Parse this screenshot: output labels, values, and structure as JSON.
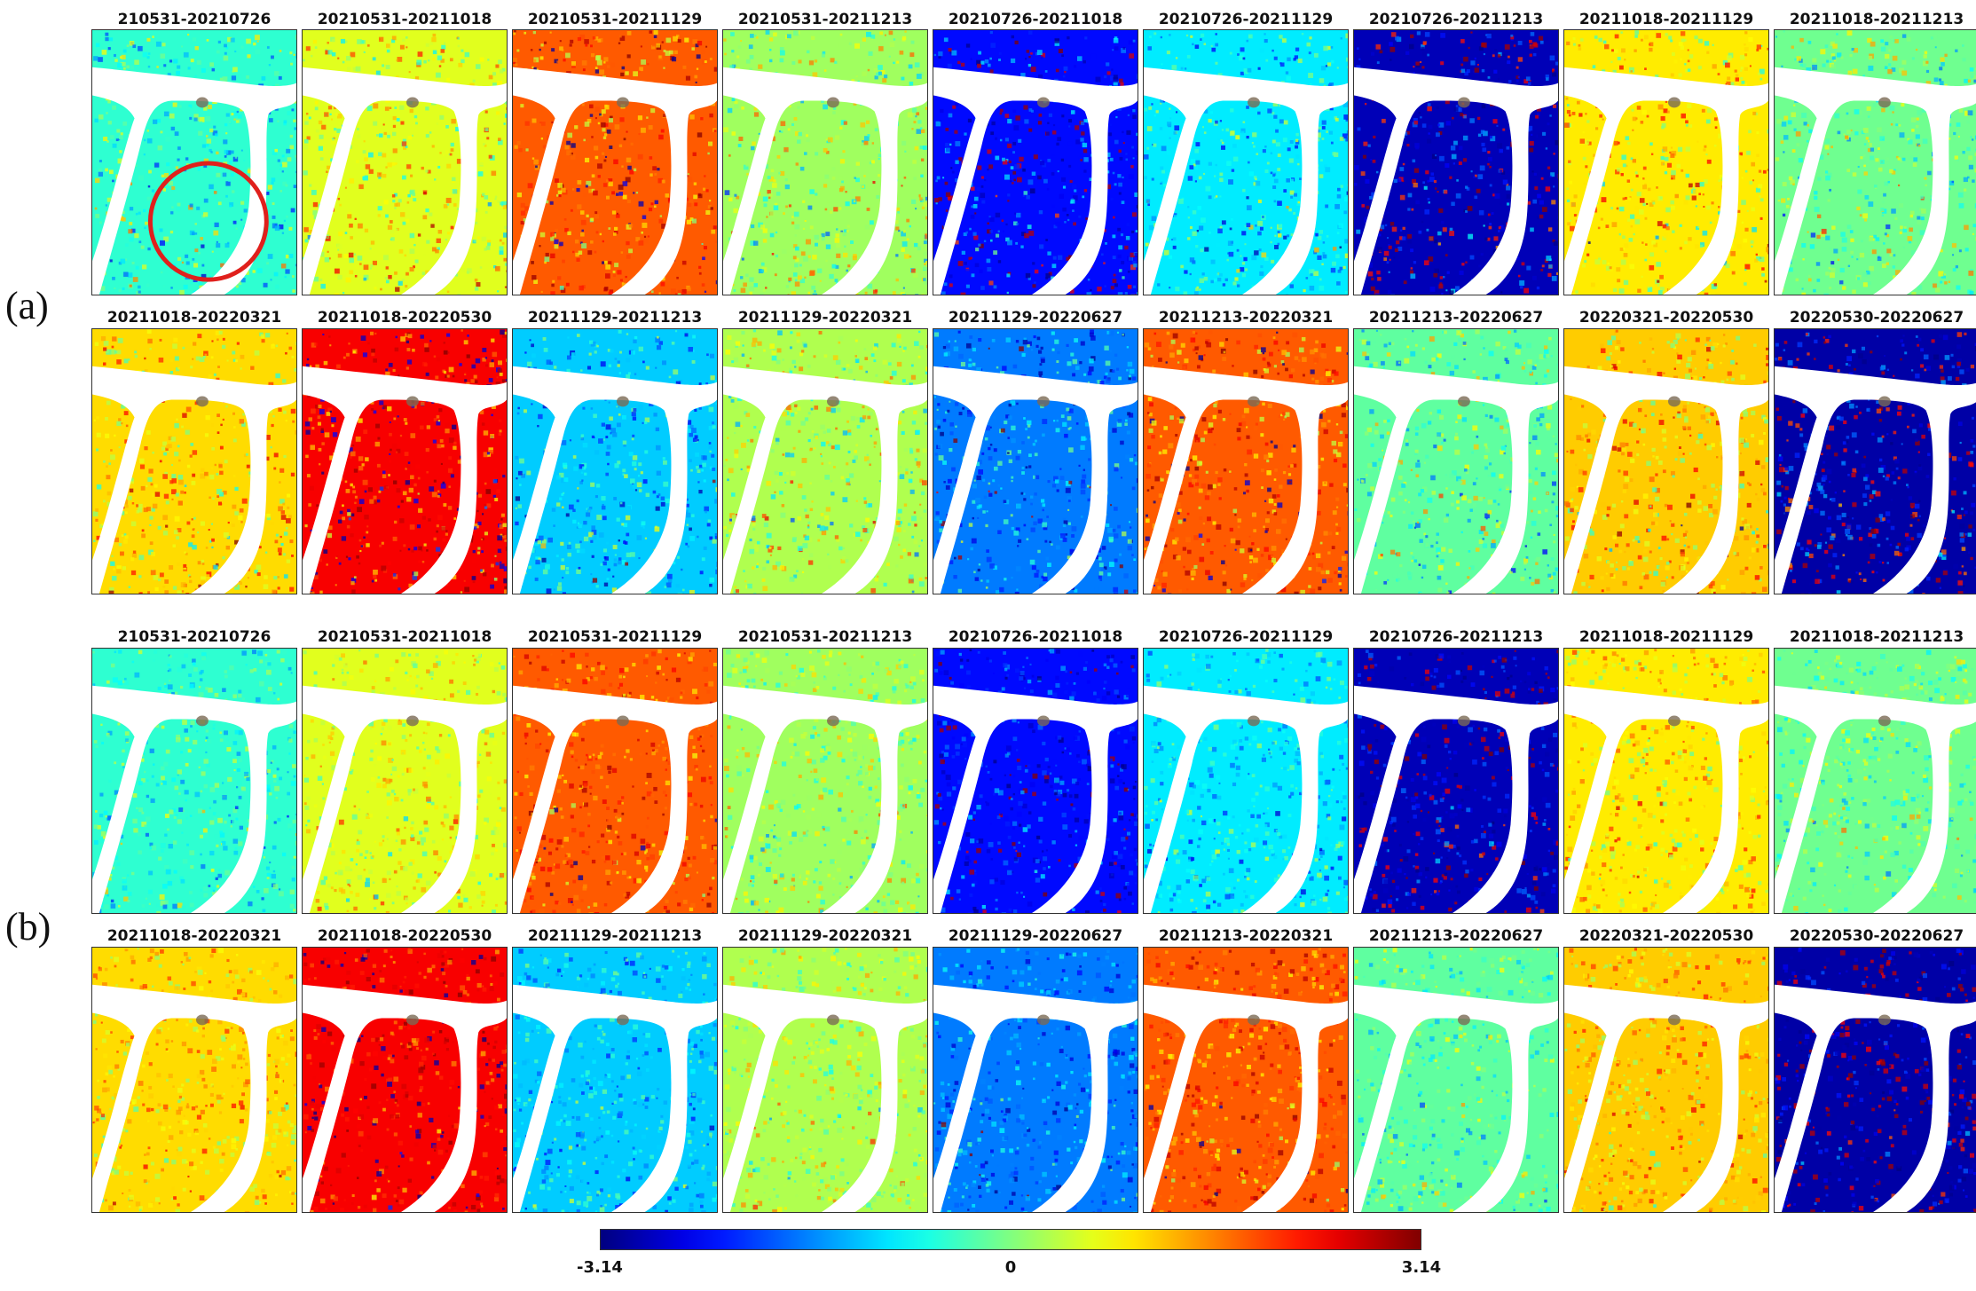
{
  "figure": {
    "parts": [
      {
        "label": "(a)",
        "rows": [
          {
            "titles": [
              "210531-20210726",
              "20210531-20211018",
              "20210531-20211129",
              "20210531-20211213",
              "20210726-20211018",
              "20210726-20211129",
              "20210726-20211213",
              "20211018-20211129",
              "20211018-20211213"
            ],
            "phase": [
              -0.5,
              0.6,
              1.8,
              0.2,
              -2.3,
              -0.9,
              -2.8,
              0.9,
              -0.1
            ]
          },
          {
            "titles": [
              "20211018-20220321",
              "20211018-20220530",
              "20211129-20211213",
              "20211129-20220321",
              "20211129-20220627",
              "20211213-20220321",
              "20211213-20220627",
              "20220321-20220530",
              "20220530-20220627"
            ],
            "phase": [
              1.0,
              2.4,
              -1.1,
              0.3,
              -1.6,
              1.8,
              -0.2,
              1.1,
              -2.9
            ]
          }
        ]
      },
      {
        "label": "(b)",
        "rows": [
          {
            "titles": [
              "210531-20210726",
              "20210531-20211018",
              "20210531-20211129",
              "20210531-20211213",
              "20210726-20211018",
              "20210726-20211129",
              "20210726-20211213",
              "20211018-20211129",
              "20211018-20211213"
            ],
            "phase": [
              -0.5,
              0.6,
              1.8,
              0.2,
              -2.3,
              -0.9,
              -2.8,
              0.9,
              -0.1
            ]
          },
          {
            "titles": [
              "20211018-20220321",
              "20211018-20220530",
              "20211129-20211213",
              "20211129-20220321",
              "20211129-20220627",
              "20211213-20220321",
              "20211213-20220627",
              "20220321-20220530",
              "20220530-20220627"
            ],
            "phase": [
              1.0,
              2.4,
              -1.1,
              0.3,
              -1.6,
              1.8,
              -0.2,
              1.1,
              -2.9
            ]
          }
        ]
      }
    ],
    "highlight": {
      "part": 0,
      "row": 0,
      "col": 0,
      "color": "#e0201c"
    },
    "colorbar": {
      "colormap": "jet",
      "range": [
        -3.14,
        3.14
      ],
      "ticks": [
        "-3.14",
        "0",
        "3.14"
      ]
    }
  }
}
